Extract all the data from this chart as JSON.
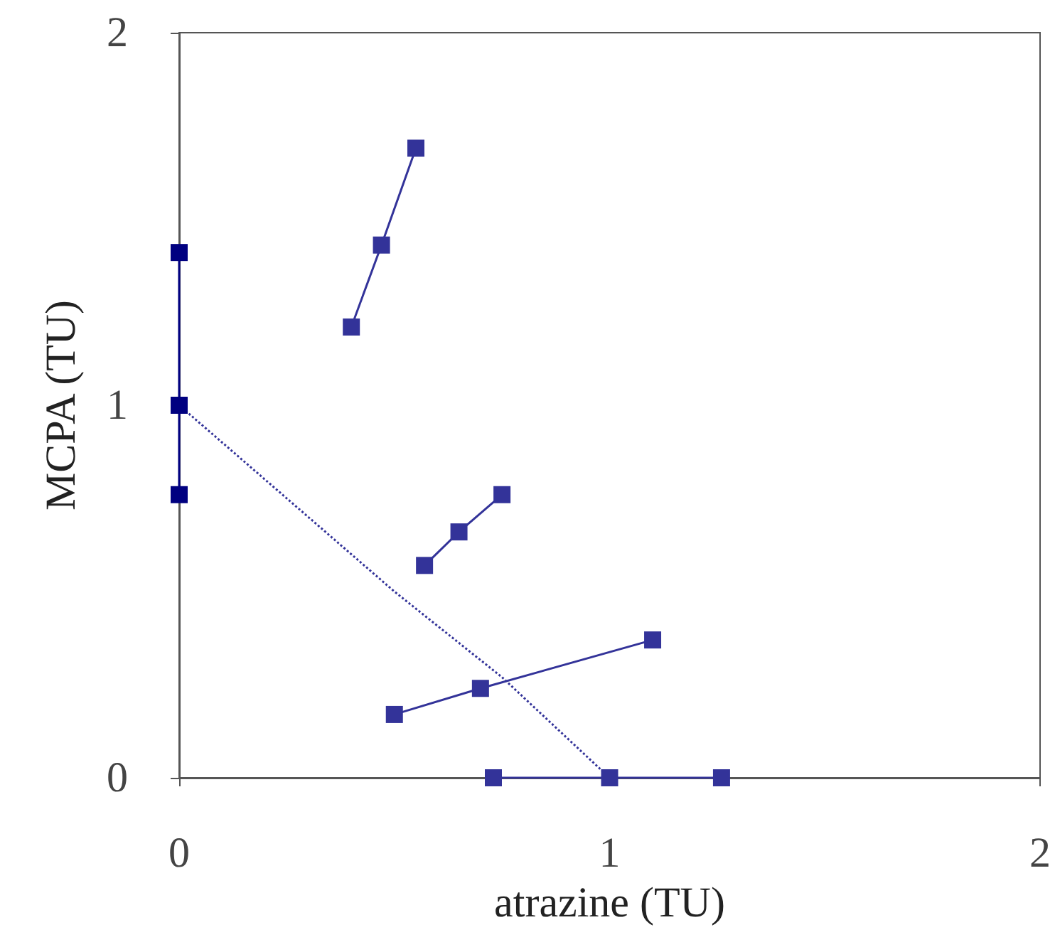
{
  "chart_data": {
    "type": "line",
    "xlabel": "atrazine (TU)",
    "ylabel": "MCPA (TU)",
    "xlim": [
      0,
      2
    ],
    "ylim": [
      0,
      2
    ],
    "xticks": [
      0,
      1,
      2
    ],
    "yticks": [
      0,
      1,
      2
    ],
    "marker": "square",
    "line_style": "solid",
    "series": [
      {
        "color": "#000080",
        "x": [
          0,
          0,
          0
        ],
        "values": [
          1.41,
          1.0,
          0.76
        ]
      },
      {
        "color": "#333399",
        "x": [
          0.4,
          0.47,
          0.55
        ],
        "values": [
          1.21,
          1.43,
          1.69
        ]
      },
      {
        "color": "#333399",
        "x": [
          0.57,
          0.65,
          0.75
        ],
        "values": [
          0.57,
          0.66,
          0.76
        ]
      },
      {
        "color": "#333399",
        "x": [
          0.5,
          0.7,
          1.1
        ],
        "values": [
          0.17,
          0.24,
          0.37
        ]
      },
      {
        "color": "#333399",
        "x": [
          0.73,
          1.0,
          1.26
        ],
        "values": [
          0,
          0,
          0
        ]
      },
      {
        "color": "#333399",
        "marker": "none",
        "line_style": "dotted",
        "x": [
          0,
          0.2,
          0.5,
          0.75,
          1.0
        ],
        "values": [
          1.0,
          0.8,
          0.5,
          0.27,
          0
        ]
      }
    ]
  }
}
